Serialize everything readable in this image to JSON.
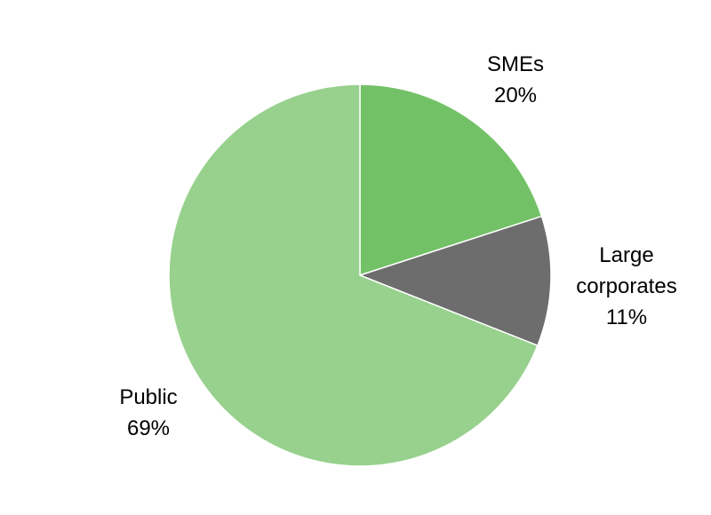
{
  "chart_data": {
    "type": "pie",
    "title": "",
    "start_angle": "top",
    "direction": "clockwise",
    "slices": [
      {
        "label": "SMEs",
        "value": 20,
        "value_label": "20%",
        "color": "#73c167"
      },
      {
        "label": "Large corporates",
        "value": 11,
        "value_label": "11%",
        "color": "#6d6d6d"
      },
      {
        "label": "Public",
        "value": 69,
        "value_label": "69%",
        "color": "#97d18d"
      }
    ]
  }
}
